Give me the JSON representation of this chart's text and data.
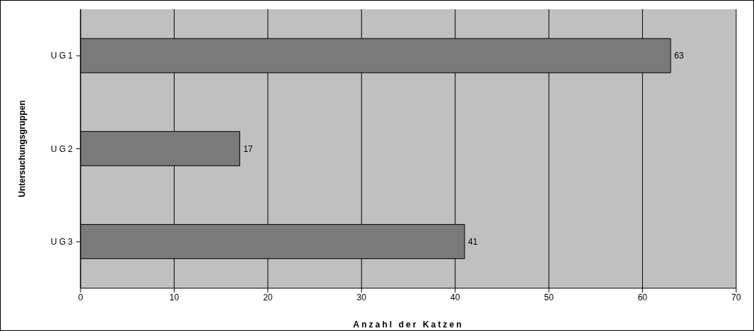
{
  "chart_data": {
    "type": "bar",
    "orientation": "horizontal",
    "categories": [
      "UG1",
      "UG2",
      "UG3"
    ],
    "values": [
      63,
      17,
      41
    ],
    "color": "#7a7a7a",
    "xlim": [
      0,
      70
    ],
    "xticks": [
      0,
      10,
      20,
      30,
      40,
      50,
      60,
      70
    ],
    "xlabel": "Anzahl der Katzen",
    "ylabel": "Untersuchungsgruppen",
    "grid": "x",
    "data_labels": true
  }
}
